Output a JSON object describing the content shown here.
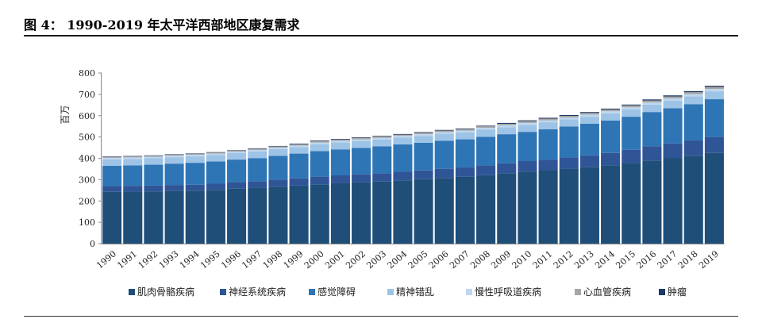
{
  "header": {
    "title": "图 4：  1990-2019 年太平洋西部地区康复需求"
  },
  "chart_data": {
    "type": "bar",
    "stacked": true,
    "ylabel": "百万",
    "ylim": [
      0,
      800
    ],
    "yticks": [
      0,
      100,
      200,
      300,
      400,
      500,
      600,
      700,
      800
    ],
    "grid": false,
    "legend_position": "bottom",
    "categories": [
      "1990",
      "1991",
      "1992",
      "1993",
      "1994",
      "1995",
      "1996",
      "1997",
      "1998",
      "1999",
      "2000",
      "2001",
      "2002",
      "2003",
      "2004",
      "2005",
      "2006",
      "2007",
      "2008",
      "2009",
      "2010",
      "2011",
      "2012",
      "2013",
      "2014",
      "2015",
      "2016",
      "2017",
      "2018",
      "2019"
    ],
    "series": [
      {
        "name": "肌肉骨骼疾病",
        "color": "#1f4e79",
        "values": [
          243,
          244,
          245,
          247,
          248,
          252,
          258,
          262,
          267,
          272,
          278,
          283,
          287,
          291,
          297,
          302,
          308,
          313,
          321,
          330,
          338,
          344,
          352,
          360,
          367,
          378,
          390,
          400,
          412,
          425
        ]
      },
      {
        "name": "神经系统疾病",
        "color": "#2f5597",
        "values": [
          27,
          27,
          27,
          28,
          28,
          29,
          30,
          31,
          33,
          34,
          36,
          37,
          38,
          39,
          40,
          41,
          43,
          44,
          46,
          47,
          49,
          50,
          52,
          54,
          58,
          62,
          67,
          70,
          72,
          75
        ]
      },
      {
        "name": "感觉障碍",
        "color": "#2e75b6",
        "values": [
          95,
          96,
          98,
          100,
          103,
          104,
          106,
          108,
          112,
          116,
          120,
          122,
          124,
          126,
          128,
          130,
          131,
          132,
          134,
          136,
          137,
          142,
          145,
          148,
          152,
          155,
          160,
          165,
          170,
          177
        ]
      },
      {
        "name": "精神错乱",
        "color": "#9dc3e6",
        "values": [
          30,
          30,
          30,
          30,
          30,
          30,
          30,
          31,
          31,
          31,
          32,
          32,
          32,
          32,
          32,
          32,
          33,
          33,
          33,
          33,
          33,
          33,
          33,
          33,
          34,
          34,
          35,
          35,
          36,
          37
        ]
      },
      {
        "name": "慢性呼吸道疾病",
        "color": "#bdd7ee",
        "values": [
          7,
          7,
          7,
          7,
          7,
          7,
          7,
          7,
          7,
          7,
          8,
          8,
          8,
          8,
          8,
          8,
          8,
          8,
          9,
          9,
          9,
          9,
          9,
          10,
          10,
          10,
          10,
          11,
          11,
          11
        ]
      },
      {
        "name": "心血管疾病",
        "color": "#a6a6a6",
        "values": [
          5,
          5,
          5,
          5,
          5,
          5,
          5,
          6,
          6,
          6,
          6,
          6,
          6,
          6,
          6,
          7,
          7,
          7,
          7,
          7,
          8,
          8,
          8,
          8,
          8,
          9,
          9,
          9,
          9,
          10
        ]
      },
      {
        "name": "肿瘤",
        "color": "#1f3864",
        "values": [
          2,
          2,
          2,
          2,
          2,
          2,
          2,
          2,
          2,
          3,
          3,
          3,
          3,
          3,
          3,
          3,
          3,
          3,
          3,
          4,
          4,
          4,
          4,
          4,
          4,
          4,
          5,
          5,
          5,
          5
        ]
      }
    ]
  }
}
